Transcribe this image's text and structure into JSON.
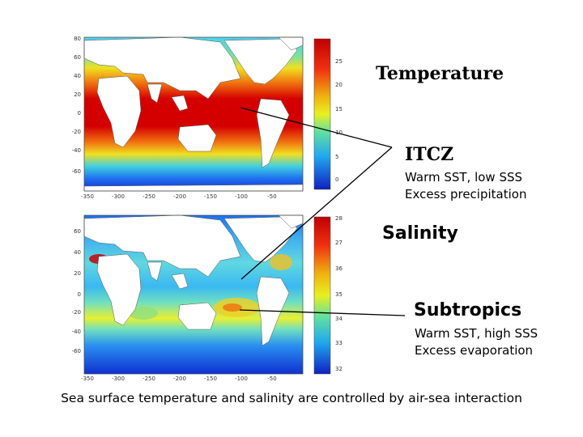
{
  "temperature_panel": {
    "colorbar_ticks": [
      "25",
      "20",
      "15",
      "10",
      "5",
      "0"
    ],
    "lat_ticks": [
      "80",
      "60",
      "40",
      "20",
      "0",
      "-20",
      "-40",
      "-60"
    ],
    "lon_ticks": [
      "-350",
      "-300",
      "-250",
      "-200",
      "-150",
      "-100",
      "-50"
    ]
  },
  "salinity_panel": {
    "colorbar_ticks": [
      "28",
      "27",
      "36",
      "35",
      "34",
      "33",
      "32"
    ],
    "lat_ticks": [
      "60",
      "40",
      "20",
      "0",
      "-20",
      "-40",
      "-60"
    ],
    "lon_ticks": [
      "-350",
      "-300",
      "-250",
      "-200",
      "-150",
      "-100",
      "-50"
    ]
  },
  "labels": {
    "temperature": "Temperature",
    "itcz_title": "ITCZ",
    "itcz_line1": "Warm SST, low SSS",
    "itcz_line2": "Excess precipitation",
    "salinity": "Salinity",
    "subtropics_title": "Subtropics",
    "subtropics_line1": "Warm SST, high SSS",
    "subtropics_line2": "Excess evaporation"
  },
  "caption": "Sea surface temperature and salinity are controlled by air-sea interaction",
  "colors": {
    "warm": "#d40000",
    "mid": "#f2e020",
    "cool": "#2aa8e8",
    "cold": "#1a2fd0",
    "land": "#ffffff"
  }
}
